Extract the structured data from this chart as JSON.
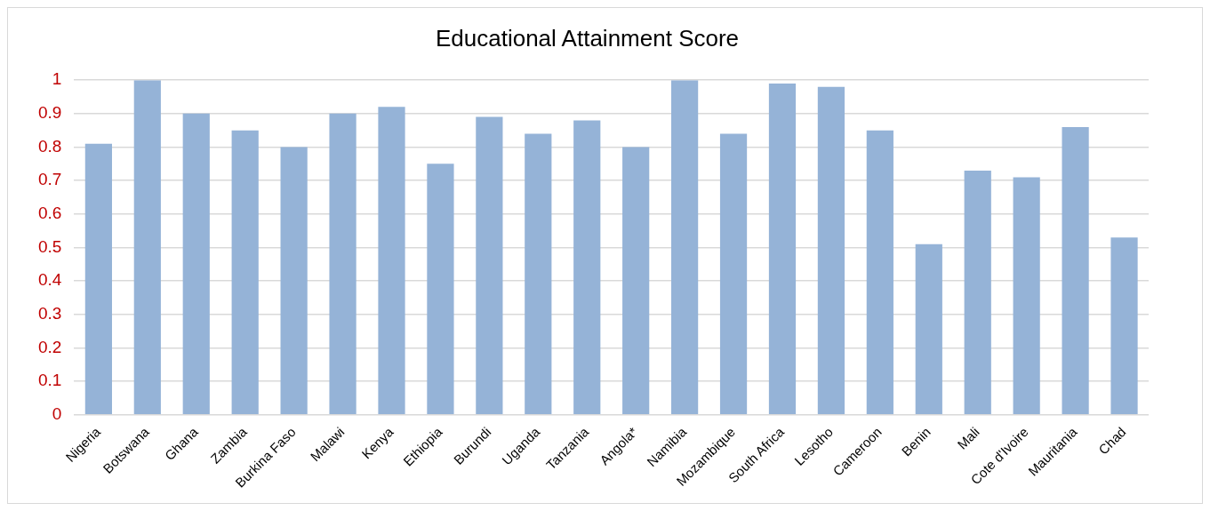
{
  "chart_data": {
    "type": "bar",
    "title": "Educational Attainment Score",
    "categories": [
      "Nigeria",
      "Botswana",
      "Ghana",
      "Zambia",
      "Burkina Faso",
      "Malawi",
      "Kenya",
      "Ethiopia",
      "Burundi",
      "Uganda",
      "Tanzania",
      "Angola*",
      "Namibia",
      "Mozambique",
      "South Africa",
      "Lesotho",
      "Cameroon",
      "Benin",
      "Mali",
      "Cote d'Ivoire",
      "Mauritania",
      "Chad"
    ],
    "values": [
      0.81,
      1.0,
      0.9,
      0.85,
      0.8,
      0.9,
      0.92,
      0.75,
      0.89,
      0.84,
      0.88,
      0.8,
      1.0,
      0.84,
      0.99,
      0.98,
      0.85,
      0.51,
      0.73,
      0.71,
      0.86,
      0.53
    ],
    "color": "#95b3d7",
    "ylim": [
      0,
      1
    ],
    "yticks": [
      0,
      0.1,
      0.2,
      0.3,
      0.4,
      0.5,
      0.6,
      0.7,
      0.8,
      0.9,
      1
    ],
    "grid": "y",
    "legend": false
  }
}
